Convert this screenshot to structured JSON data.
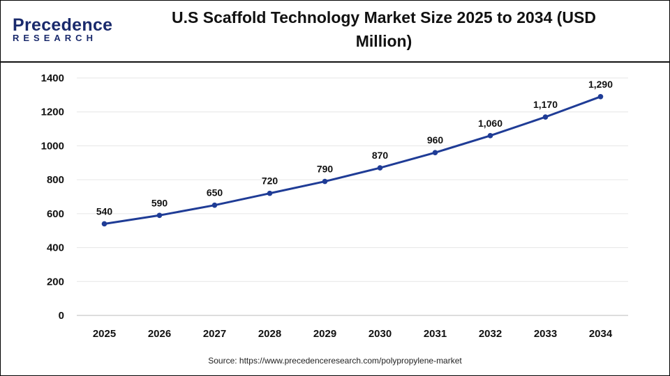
{
  "logo": {
    "line1": "Precedence",
    "line2": "RESEARCH"
  },
  "source": "Source: https://www.precedenceresearch.com/polypropylene-market",
  "colors": {
    "line": "#1f3c96",
    "grid": "#e6e6e6"
  },
  "chart_data": {
    "type": "line",
    "title": "U.S Scaffold Technology Market Size 2025 to 2034 (USD Million)",
    "categories": [
      "2025",
      "2026",
      "2027",
      "2028",
      "2029",
      "2030",
      "2031",
      "2032",
      "2033",
      "2034"
    ],
    "values": [
      540,
      590,
      650,
      720,
      790,
      870,
      960,
      1060,
      1170,
      1290
    ],
    "data_labels": [
      "540",
      "590",
      "650",
      "720",
      "790",
      "870",
      "960",
      "1,060",
      "1,170",
      "1,290"
    ],
    "ylim": [
      0,
      1400
    ],
    "yticks": [
      0,
      200,
      400,
      600,
      800,
      1000,
      1200,
      1400
    ],
    "grid": true,
    "legend": "none"
  }
}
